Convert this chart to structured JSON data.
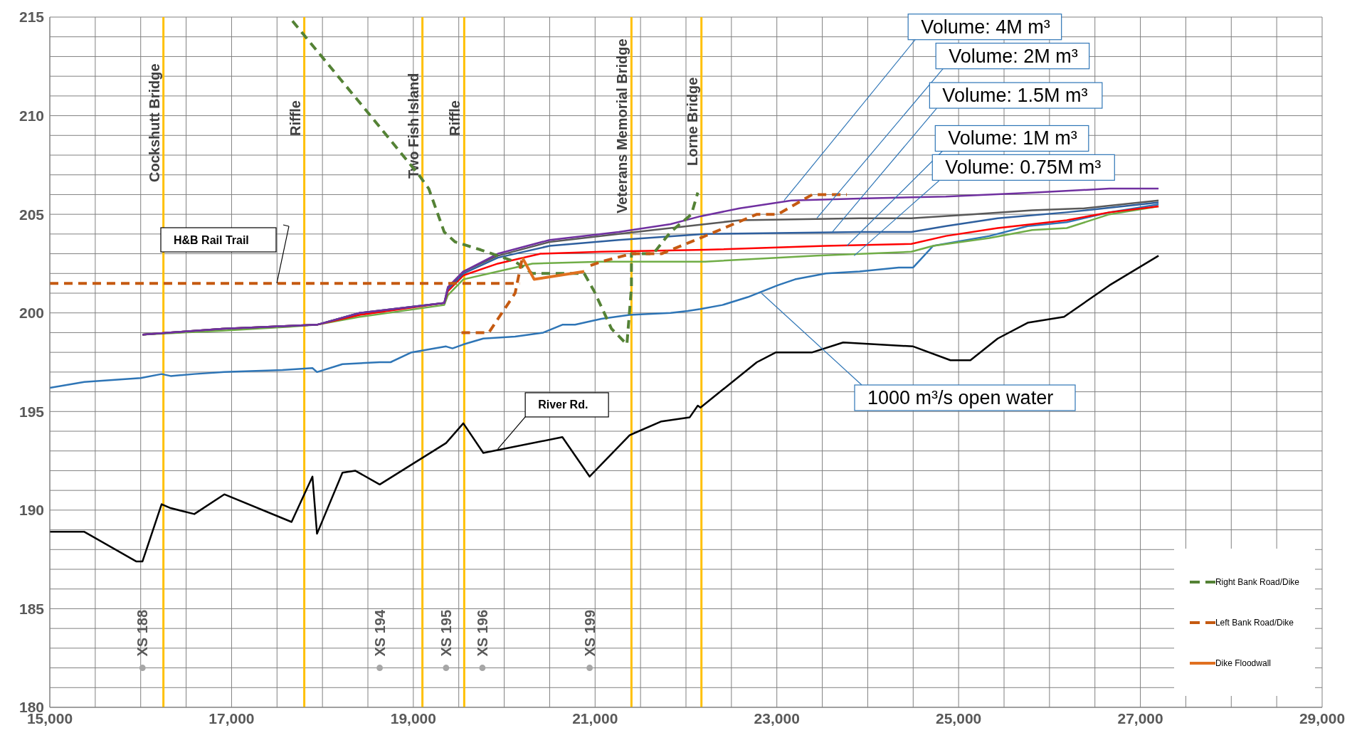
{
  "chart_data": {
    "type": "line",
    "xlim": [
      15000,
      29000
    ],
    "xticks": [
      {
        "value": 15000,
        "label": "15,000"
      },
      {
        "value": 15500,
        "label": null
      },
      {
        "value": 16000,
        "label": null
      },
      {
        "value": 16500,
        "label": null
      },
      {
        "value": 17000,
        "label": "17,000"
      },
      {
        "value": 17500,
        "label": null
      },
      {
        "value": 18000,
        "label": null
      },
      {
        "value": 18500,
        "label": null
      },
      {
        "value": 19000,
        "label": "19,000"
      },
      {
        "value": 19500,
        "label": null
      },
      {
        "value": 20000,
        "label": null
      },
      {
        "value": 20500,
        "label": null
      },
      {
        "value": 21000,
        "label": "21,000"
      },
      {
        "value": 21500,
        "label": null
      },
      {
        "value": 22000,
        "label": null
      },
      {
        "value": 22500,
        "label": null
      },
      {
        "value": 23000,
        "label": "23,000"
      },
      {
        "value": 23500,
        "label": null
      },
      {
        "value": 24000,
        "label": null
      },
      {
        "value": 24500,
        "label": null
      },
      {
        "value": 25000,
        "label": "25,000"
      },
      {
        "value": 25500,
        "label": null
      },
      {
        "value": 26000,
        "label": null
      },
      {
        "value": 26500,
        "label": null
      },
      {
        "value": 27000,
        "label": "27,000"
      },
      {
        "value": 27500,
        "label": null
      },
      {
        "value": 28000,
        "label": null
      },
      {
        "value": 28500,
        "label": null
      },
      {
        "value": 29000,
        "label": "29,000"
      }
    ],
    "ylim": [
      180,
      215
    ],
    "yticks": [
      180,
      {
        "value": 181,
        "label": null
      },
      {
        "value": 182,
        "label": null
      },
      {
        "value": 183,
        "label": null
      },
      {
        "value": 184,
        "label": null
      },
      185,
      {
        "value": 186,
        "label": null
      },
      {
        "value": 187,
        "label": null
      },
      {
        "value": 188,
        "label": null
      },
      {
        "value": 189,
        "label": null
      },
      190,
      {
        "value": 191,
        "label": null
      },
      {
        "value": 192,
        "label": null
      },
      {
        "value": 193,
        "label": null
      },
      {
        "value": 194,
        "label": null
      },
      195,
      {
        "value": 196,
        "label": null
      },
      {
        "value": 197,
        "label": null
      },
      {
        "value": 198,
        "label": null
      },
      {
        "value": 199,
        "label": null
      },
      200,
      {
        "value": 201,
        "label": null
      },
      {
        "value": 202,
        "label": null
      },
      {
        "value": 203,
        "label": null
      },
      {
        "value": 204,
        "label": null
      },
      205,
      {
        "value": 206,
        "label": null
      },
      {
        "value": 207,
        "label": null
      },
      {
        "value": 208,
        "label": null
      },
      {
        "value": 209,
        "label": null
      },
      210,
      {
        "value": 211,
        "label": null
      },
      {
        "value": 212,
        "label": null
      },
      {
        "value": 213,
        "label": null
      },
      {
        "value": 214,
        "label": null
      },
      215
    ],
    "grid": true,
    "legend": "bottom right",
    "series": [
      {
        "color": "#000000",
        "x": [
          15000,
          15380,
          15950,
          16020,
          16230,
          16330,
          16590,
          16920,
          17660,
          17890,
          17940,
          18220,
          18360,
          18630,
          19360,
          19550,
          19770,
          20640,
          20940,
          21380,
          21430,
          21730,
          22040,
          22130,
          22160,
          22780,
          22990,
          23390,
          23730,
          24500,
          24910,
          25130,
          25430,
          25760,
          26160,
          26660,
          27200
        ],
        "values": [
          188.9,
          188.9,
          187.4,
          187.4,
          190.3,
          190.1,
          189.8,
          190.8,
          189.4,
          191.7,
          188.8,
          191.9,
          192.0,
          191.3,
          193.4,
          194.4,
          192.9,
          193.7,
          191.7,
          193.8,
          193.9,
          194.5,
          194.7,
          195.3,
          195.2,
          197.5,
          198.0,
          198.0,
          198.5,
          198.3,
          197.6,
          197.6,
          198.7,
          199.5,
          199.8,
          201.4,
          202.9
        ]
      },
      {
        "color": "#2e75b6",
        "x": [
          15000,
          15380,
          16000,
          16230,
          16330,
          16590,
          16920,
          17560,
          17890,
          17940,
          18220,
          18630,
          18750,
          18980,
          19360,
          19430,
          19550,
          19770,
          20120,
          20430,
          20640,
          20780,
          21070,
          21380,
          21830,
          22020,
          22160,
          22400,
          22680,
          23010,
          23200,
          23540,
          23910,
          24340,
          24500,
          24720,
          25340,
          25760,
          26190,
          26660,
          27200
        ],
        "values": [
          196.2,
          196.5,
          196.7,
          196.9,
          196.8,
          196.9,
          197.0,
          197.1,
          197.2,
          197.0,
          197.4,
          197.5,
          197.5,
          198.0,
          198.3,
          198.2,
          198.4,
          198.7,
          198.8,
          199.0,
          199.4,
          199.4,
          199.7,
          199.9,
          200.0,
          200.1,
          200.2,
          200.4,
          200.8,
          201.4,
          201.7,
          202.0,
          202.1,
          202.3,
          202.3,
          203.4,
          203.9,
          204.4,
          204.6,
          205.1,
          205.5
        ]
      },
      {
        "color": "#70ad47",
        "x": [
          16020,
          16900,
          17660,
          17940,
          18410,
          19340,
          19380,
          19550,
          19930,
          20310,
          21070,
          22210,
          23440,
          24480,
          24720,
          25340,
          25810,
          26190,
          26660,
          27200
        ],
        "values": [
          198.9,
          199.1,
          199.3,
          199.4,
          199.8,
          200.4,
          200.9,
          201.7,
          202.1,
          202.5,
          202.6,
          202.6,
          202.9,
          203.1,
          203.4,
          203.8,
          204.2,
          204.3,
          205.0,
          205.4
        ]
      },
      {
        "color": "#ff0000",
        "x": [
          16020,
          16900,
          17940,
          18410,
          19340,
          19380,
          19550,
          19930,
          20400,
          21070,
          22210,
          23540,
          24480,
          24860,
          25430,
          26190,
          26660,
          27200
        ],
        "values": [
          198.9,
          199.2,
          199.4,
          199.9,
          200.5,
          201.1,
          201.9,
          202.5,
          203.0,
          203.1,
          203.2,
          203.4,
          203.5,
          203.9,
          204.3,
          204.7,
          205.1,
          205.4
        ]
      },
      {
        "color": "#2e5f9e",
        "x": [
          16020,
          16900,
          17940,
          18410,
          19340,
          19380,
          19550,
          19930,
          20500,
          21260,
          22210,
          23910,
          24480,
          24860,
          25430,
          26190,
          27200
        ],
        "values": [
          198.9,
          199.2,
          199.4,
          200.0,
          200.5,
          201.2,
          202.0,
          202.8,
          203.4,
          203.7,
          204.0,
          204.1,
          204.1,
          204.4,
          204.8,
          205.1,
          205.6
        ]
      },
      {
        "color": "#595959",
        "x": [
          16020,
          16900,
          17940,
          18410,
          19340,
          19380,
          19550,
          19930,
          20500,
          21260,
          22020,
          22590,
          23910,
          24480,
          25150,
          25810,
          26380,
          27200
        ],
        "values": [
          198.9,
          199.2,
          199.4,
          200.0,
          200.5,
          201.3,
          202.1,
          202.9,
          203.6,
          204.0,
          204.4,
          204.7,
          204.8,
          204.8,
          205.0,
          205.2,
          205.3,
          205.7
        ]
      },
      {
        "color": "#7030a0",
        "x": [
          16020,
          16900,
          17940,
          18410,
          19340,
          19380,
          19550,
          19930,
          20500,
          21260,
          21830,
          22160,
          22590,
          23160,
          23910,
          24860,
          25810,
          26660,
          27200
        ],
        "values": [
          198.9,
          199.2,
          199.4,
          200.0,
          200.5,
          201.3,
          202.1,
          203.0,
          203.7,
          204.1,
          204.5,
          204.9,
          205.3,
          205.7,
          205.8,
          205.9,
          206.1,
          206.3,
          206.3
        ]
      },
      {
        "name": "Right Bank Road/Dike",
        "color": "#548235",
        "line_style": "dashed",
        "x": [
          17670,
          18600,
          19060,
          19170,
          19340,
          19460,
          19740,
          20120,
          20310,
          20880,
          20990,
          21180,
          21350,
          21400,
          21400,
          21640,
          21830,
          22060,
          22130
        ],
        "values": [
          214.8,
          209.6,
          207.0,
          206.3,
          204.1,
          203.6,
          203.2,
          202.6,
          202.0,
          202.0,
          201.1,
          199.2,
          198.4,
          201.3,
          203.0,
          203.0,
          204.1,
          205.0,
          206.1
        ]
      },
      {
        "color": "#c55a11",
        "line_style": "dashed",
        "x": [
          15000,
          20170
        ],
        "values": [
          201.5,
          201.5
        ]
      },
      {
        "color": "#c55a11",
        "line_style": "dashed",
        "x": [
          19530,
          19830,
          20120,
          20200
        ],
        "values": [
          199.0,
          199.0,
          201.0,
          202.8
        ]
      },
      {
        "name": "Left Bank Road/Dike",
        "color": "#c55a11",
        "line_style": "dashed",
        "x": [
          20950,
          21070,
          21400,
          21730,
          22160,
          22780,
          23010,
          23390,
          23770
        ],
        "values": [
          202.4,
          202.6,
          203.0,
          203.0,
          203.8,
          205.0,
          205.0,
          206.0,
          206.0
        ]
      },
      {
        "name": "Dike Floodwall",
        "color": "#e07020",
        "line_style": "solid",
        "x": [
          20200,
          20330,
          20880
        ],
        "values": [
          202.8,
          201.7,
          202.1
        ]
      },
      {
        "type": "scatter",
        "marker": "circle",
        "color": "#a6a6a6",
        "x": [
          16020,
          18630,
          19360,
          19760,
          20940
        ],
        "values": [
          182,
          182,
          182,
          182,
          182
        ],
        "value_labels": [
          "XS 188",
          "XS 194",
          "XS 195",
          "XS 196",
          "XS 199"
        ]
      }
    ],
    "ref_lines": [
      {
        "axis": "x",
        "value": 16250,
        "label": "Cockshutt Bridge",
        "color": "#ffc000"
      },
      {
        "axis": "x",
        "value": 17800,
        "label": "Riffle",
        "color": "#ffc000"
      },
      {
        "axis": "x",
        "value": 19100,
        "label": "Two Fish Island",
        "color": "#ffc000"
      },
      {
        "axis": "x",
        "value": 19560,
        "label": "Riffle",
        "color": "#ffc000"
      },
      {
        "axis": "x",
        "value": 21400,
        "label": "Veterans Memorial Bridge",
        "color": "#ffc000"
      },
      {
        "axis": "x",
        "value": 22170,
        "label": "Lorne Bridge",
        "color": "#ffc000"
      }
    ],
    "annotations": [
      "H&B Rail Trail",
      {
        "text": "River Rd.",
        "x": 19930,
        "y": 193.1
      },
      {
        "text": "Volume: 4M m³",
        "x": 23080,
        "y": 205.7
      },
      {
        "text": "Volume: 2M m³",
        "x": 23440,
        "y": 204.8
      },
      {
        "text": "Volume: 1.5M m³",
        "x": 23610,
        "y": 204.1
      },
      {
        "text": "Volume: 1M m³",
        "x": 23770,
        "y": 203.4
      },
      {
        "text": "Volume: 0.75M m³",
        "x": 23850,
        "y": 202.9
      },
      {
        "text": "1000 m³/s open water",
        "x": 22830,
        "y": 201.0
      }
    ]
  }
}
